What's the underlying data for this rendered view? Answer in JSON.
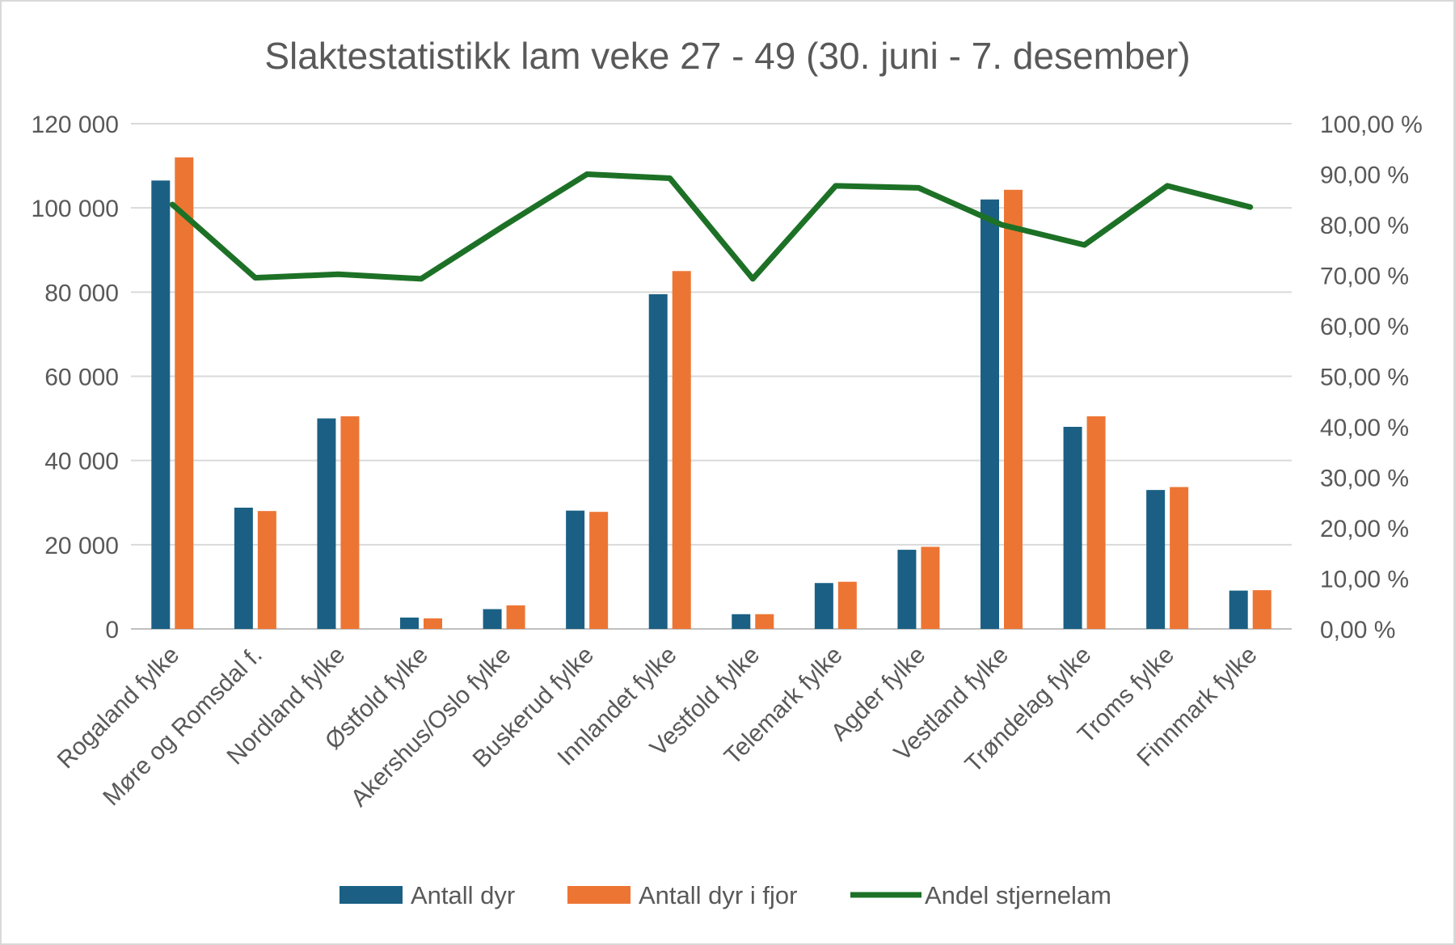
{
  "chart_data": {
    "type": "bar",
    "title": "Slaktestatistikk lam veke 27 - 49 (30. juni - 7. desember)",
    "xlabel": "",
    "ylabel": "",
    "categories": [
      "Rogaland fylke",
      "Møre og Romsdal f.",
      "Nordland fylke",
      "Østfold fylke",
      "Akershus/Oslo  fylke",
      "Buskerud fylke",
      "Innlandet fylke",
      "Vestfold fylke",
      "Telemark fylke",
      "Agder fylke",
      "Vestland fylke",
      "Trøndelag fylke",
      "Troms fylke",
      "Finnmark fylke"
    ],
    "series": [
      {
        "name": "Antall dyr",
        "type": "bar",
        "axis": "left",
        "color": "#1b6084",
        "values": [
          106500,
          28800,
          50000,
          2700,
          4700,
          28100,
          79500,
          3500,
          10900,
          18800,
          102000,
          48000,
          33000,
          9100
        ]
      },
      {
        "name": "Antall dyr i fjor",
        "type": "bar",
        "axis": "left",
        "color": "#ed7533",
        "values": [
          112000,
          28000,
          50500,
          2500,
          5600,
          27800,
          85000,
          3500,
          11200,
          19500,
          104300,
          50500,
          33700,
          9200
        ]
      },
      {
        "name": "Andel stjernelam",
        "type": "line",
        "axis": "right",
        "color": "#1d7126",
        "values": [
          84.0,
          69.5,
          70.2,
          69.3,
          79.8,
          90.0,
          89.2,
          69.3,
          87.7,
          87.3,
          80.0,
          76.0,
          87.7,
          83.5
        ]
      }
    ],
    "y_left": {
      "lim": [
        0,
        120000
      ],
      "ticks": [
        0,
        20000,
        40000,
        60000,
        80000,
        100000,
        120000
      ],
      "tick_labels": [
        "0",
        "20 000",
        "40 000",
        "60 000",
        "80 000",
        "100 000",
        "120 000"
      ]
    },
    "y_right": {
      "lim": [
        0,
        100
      ],
      "ticks": [
        0,
        10,
        20,
        30,
        40,
        50,
        60,
        70,
        80,
        90,
        100
      ],
      "tick_labels": [
        "0,00 %",
        "10,00 %",
        "20,00 %",
        "30,00 %",
        "40,00 %",
        "50,00 %",
        "60,00 %",
        "70,00 %",
        "80,00 %",
        "90,00 %",
        "100,00 %"
      ]
    },
    "grid": true,
    "legend_position": "bottom"
  }
}
